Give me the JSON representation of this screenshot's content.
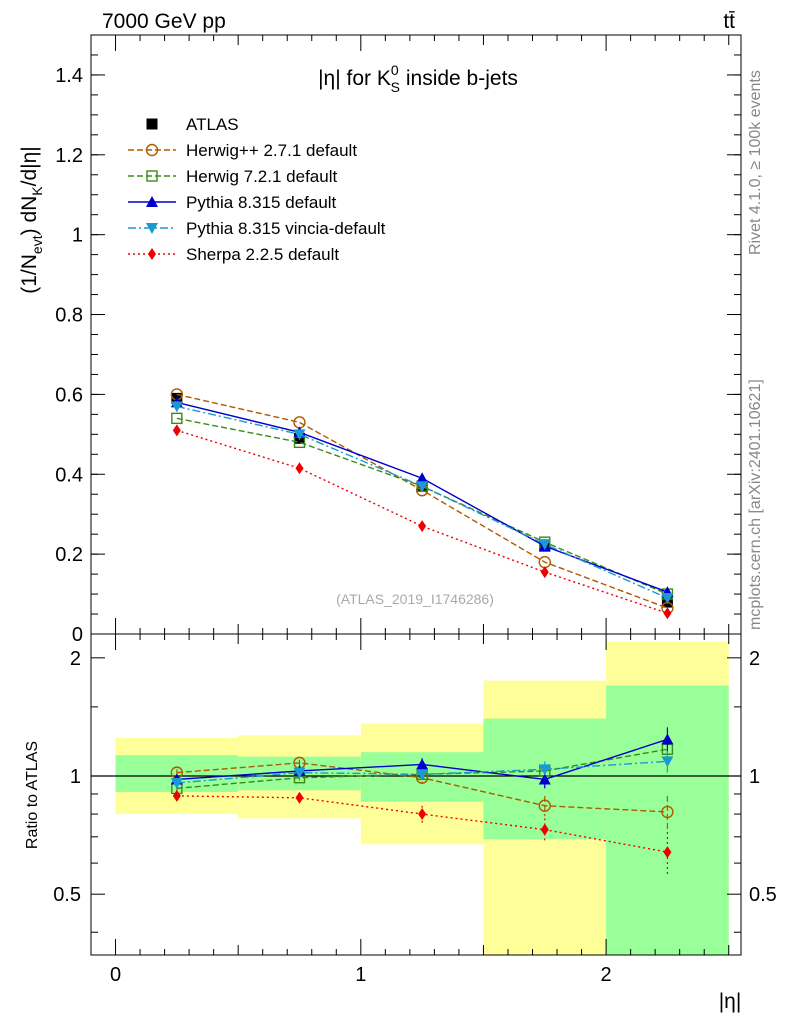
{
  "header": {
    "energy_label": "7000 GeV pp",
    "process_label": "tt̄",
    "side_rivet": "Rivet 4.1.0, ≥ 100k events",
    "side_mcplots": "mcplots.cern.ch [arXiv:2401.10621]"
  },
  "chart_data": [
    {
      "type": "line",
      "panel": "main",
      "title": "|η| for K⁰S inside b-jets",
      "title_parts": {
        "pre": "|η| for K",
        "sup": "0",
        "sub": "S",
        "post": " inside b-jets"
      },
      "ylabel": "(1/N_evt) dN_K/d|η|",
      "ylabel_parts": {
        "a": "(1/N",
        "a_sub": "evt",
        "b": ") dN",
        "b_sub": "K",
        "c": "/d|η|"
      },
      "watermark": "(ATLAS_2019_I1746286)",
      "xlim": [
        -0.1,
        2.55
      ],
      "ylim": [
        0,
        1.5
      ],
      "yticks": [
        0,
        0.2,
        0.4,
        0.6,
        0.8,
        1,
        1.2,
        1.4
      ],
      "ytick_labels": [
        "0",
        "0.2",
        "0.4",
        "0.6",
        "0.8",
        "1",
        "1.2",
        "1.4"
      ],
      "x": [
        0.25,
        0.75,
        1.25,
        1.75,
        2.25
      ],
      "series": [
        {
          "name": "ATLAS",
          "color": "#000000",
          "dash": "none",
          "marker": "square_filled",
          "line": false,
          "values": [
            0.59,
            0.49,
            0.37,
            0.22,
            0.08
          ]
        },
        {
          "name": "Herwig++ 2.7.1 default",
          "color": "#b05a00",
          "dash": "6,3",
          "marker": "circle_open",
          "values": [
            0.6,
            0.53,
            0.36,
            0.18,
            0.065
          ]
        },
        {
          "name": "Herwig 7.2.1 default",
          "color": "#3a8a1a",
          "dash": "6,3",
          "marker": "square_open",
          "values": [
            0.54,
            0.48,
            0.37,
            0.23,
            0.1
          ]
        },
        {
          "name": "Pythia 8.315 default",
          "color": "#0000cc",
          "dash": "none",
          "marker": "triangle_up",
          "values": [
            0.58,
            0.505,
            0.39,
            0.22,
            0.105
          ]
        },
        {
          "name": "Pythia 8.315 vincia-default",
          "color": "#1a9ad0",
          "dash": "8,3,2,3",
          "marker": "triangle_down",
          "values": [
            0.57,
            0.5,
            0.37,
            0.225,
            0.09
          ]
        },
        {
          "name": "Sherpa 2.2.5 default",
          "color": "#ee0000",
          "dash": "2,3",
          "marker": "diamond",
          "values": [
            0.51,
            0.415,
            0.27,
            0.155,
            0.052
          ]
        }
      ]
    },
    {
      "type": "line",
      "panel": "ratio",
      "title": "",
      "xlabel": "|η|",
      "ylabel": "Ratio to ATLAS",
      "xlim": [
        -0.1,
        2.55
      ],
      "ylim": [
        0.35,
        2.3
      ],
      "xticks": [
        0,
        1,
        2
      ],
      "xtick_labels": [
        "0",
        "1",
        "2"
      ],
      "yticks": [
        0.5,
        1,
        2
      ],
      "ytick_labels": [
        "0.5",
        "1",
        "2"
      ],
      "x": [
        0.25,
        0.75,
        1.25,
        1.75,
        2.25
      ],
      "bins": [
        [
          0,
          0.5
        ],
        [
          0.5,
          1.0
        ],
        [
          1.0,
          1.5
        ],
        [
          1.5,
          2.0
        ],
        [
          2.0,
          2.5
        ]
      ],
      "band_green": [
        [
          0.91,
          1.13
        ],
        [
          0.92,
          1.12
        ],
        [
          0.86,
          1.15
        ],
        [
          0.69,
          1.4
        ],
        [
          0.35,
          1.7
        ]
      ],
      "band_yellow": [
        [
          0.8,
          1.25
        ],
        [
          0.78,
          1.27
        ],
        [
          0.67,
          1.36
        ],
        [
          0.35,
          1.75
        ],
        [
          0.35,
          2.2
        ]
      ],
      "series": [
        {
          "name": "Herwig++ 2.7.1 default",
          "values": [
            1.02,
            1.08,
            0.99,
            0.84,
            0.81
          ],
          "err": [
            0.02,
            0.02,
            0.03,
            0.05,
            0.08
          ]
        },
        {
          "name": "Herwig 7.2.1 default",
          "values": [
            0.93,
            0.99,
            1.01,
            1.03,
            1.17
          ],
          "err": [
            0.02,
            0.02,
            0.03,
            0.04,
            0.06
          ]
        },
        {
          "name": "Pythia 8.315 default",
          "values": [
            0.98,
            1.03,
            1.07,
            0.98,
            1.24
          ],
          "err": [
            0.02,
            0.02,
            0.04,
            0.05,
            0.09
          ]
        },
        {
          "name": "Pythia 8.315 vincia-default",
          "values": [
            0.96,
            1.02,
            1.01,
            1.04,
            1.09
          ],
          "err": [
            0.02,
            0.02,
            0.03,
            0.05,
            0.07
          ]
        },
        {
          "name": "Sherpa 2.2.5 default",
          "values": [
            0.89,
            0.88,
            0.8,
            0.73,
            0.64
          ],
          "err": [
            0.02,
            0.02,
            0.04,
            0.05,
            0.08
          ]
        }
      ]
    }
  ]
}
